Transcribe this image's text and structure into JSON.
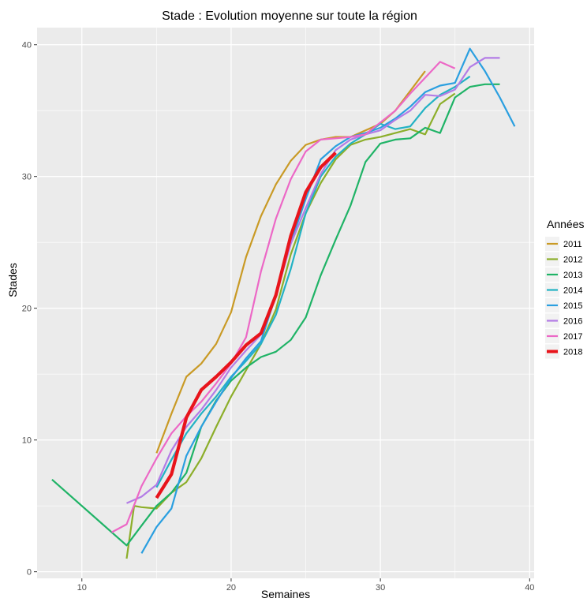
{
  "chart_data": {
    "type": "line",
    "title": "Stade : Evolution moyenne sur toute la région",
    "xlabel": "Semaines",
    "ylabel": "Stades",
    "xlim": [
      7,
      40.3
    ],
    "ylim": [
      -0.5,
      41.3
    ],
    "xticks": [
      10,
      20,
      30,
      40
    ],
    "yticks": [
      0,
      10,
      20,
      30,
      40
    ],
    "grid": true,
    "legend_title": "Années",
    "legend_position": "right",
    "series": [
      {
        "name": "2011",
        "color": "#C99A25",
        "width": 2.2,
        "x": [
          15,
          16,
          17,
          18,
          19,
          20,
          21,
          22,
          23,
          24,
          25,
          26,
          27,
          28,
          29,
          30,
          31,
          32,
          33
        ],
        "y": [
          9,
          12,
          14.8,
          15.8,
          17.3,
          19.7,
          23.9,
          27,
          29.4,
          31.2,
          32.4,
          32.8,
          33,
          33,
          33.5,
          34,
          35,
          36.5,
          38
        ]
      },
      {
        "name": "2012",
        "color": "#8CAE2A",
        "width": 2.2,
        "x": [
          13,
          13.5,
          14,
          15,
          16,
          17,
          18,
          19,
          20,
          21,
          22,
          23,
          24,
          25,
          26,
          27,
          28,
          29,
          30,
          31,
          32,
          33,
          34,
          35
        ],
        "y": [
          1,
          5,
          4.9,
          4.8,
          6,
          6.8,
          8.6,
          11,
          13.3,
          15.3,
          17.3,
          19.9,
          24.1,
          27.2,
          29.5,
          31.3,
          32.4,
          32.8,
          33,
          33.3,
          33.6,
          33.2,
          35.5,
          36.3
        ]
      },
      {
        "name": "2013",
        "color": "#1FB366",
        "width": 2.2,
        "x": [
          8,
          13,
          14,
          15,
          16,
          17,
          18,
          19,
          20,
          21,
          22,
          23,
          24,
          25,
          26,
          27,
          28,
          29,
          30,
          31,
          32,
          33,
          34,
          35,
          36,
          37,
          38
        ],
        "y": [
          7,
          2,
          3.5,
          5,
          6,
          7.5,
          11,
          13,
          14.5,
          15.5,
          16.3,
          16.7,
          17.6,
          19.3,
          22.5,
          25.2,
          27.8,
          31.1,
          32.5,
          32.8,
          32.9,
          33.7,
          33.3,
          36,
          36.8,
          37,
          37
        ]
      },
      {
        "name": "2014",
        "color": "#22B2C4",
        "width": 2.2,
        "x": [
          15,
          16,
          17,
          18,
          19,
          20,
          21,
          22,
          23,
          24,
          25,
          26,
          27,
          28,
          29,
          30,
          31,
          32,
          33,
          34,
          35,
          36
        ],
        "y": [
          6.4,
          8.5,
          10.5,
          12,
          13.3,
          14.8,
          16,
          17.3,
          19.5,
          23,
          27.2,
          30,
          31.5,
          32.5,
          33.2,
          34,
          33.6,
          33.8,
          35.2,
          36.2,
          36.8,
          37.6
        ]
      },
      {
        "name": "2015",
        "color": "#2A9FE0",
        "width": 2.2,
        "x": [
          14,
          15,
          16,
          17,
          18,
          19,
          20,
          21,
          22,
          23,
          24,
          25,
          26,
          27,
          28,
          29,
          30,
          31,
          32,
          33,
          34,
          35,
          36,
          37,
          38,
          39
        ],
        "y": [
          1.4,
          3.4,
          4.8,
          8.8,
          11,
          12.9,
          14.7,
          16.2,
          17.5,
          21,
          25,
          28.3,
          31.3,
          32.3,
          33,
          33.3,
          33.7,
          34.4,
          35.3,
          36.4,
          36.9,
          37.1,
          39.7,
          38,
          36,
          33.8
        ]
      },
      {
        "name": "2016",
        "color": "#B37CE6",
        "width": 2.2,
        "x": [
          13,
          14,
          15,
          16,
          17,
          18,
          19,
          20,
          21,
          22,
          23,
          24,
          25,
          26,
          27,
          28,
          29,
          30,
          31,
          32,
          33,
          34,
          35,
          36,
          37,
          38
        ],
        "y": [
          5.2,
          5.7,
          6.6,
          9.2,
          11,
          12.3,
          13.8,
          15.5,
          16.8,
          18,
          21,
          24.9,
          27.6,
          30.2,
          32,
          32.8,
          33.2,
          33.5,
          34.3,
          35,
          36.2,
          36.1,
          36.6,
          38.3,
          39,
          39
        ]
      },
      {
        "name": "2017",
        "color": "#EC68C6",
        "width": 2.2,
        "x": [
          12,
          13,
          14,
          15,
          16,
          17,
          18,
          19,
          20,
          21,
          22,
          23,
          24,
          25,
          26,
          27,
          28,
          29,
          30,
          31,
          32,
          33,
          34,
          35
        ],
        "y": [
          3,
          3.6,
          6.5,
          8.6,
          10.5,
          11.8,
          12.9,
          14.3,
          15.8,
          17.8,
          22.8,
          26.8,
          29.8,
          31.9,
          32.8,
          32.9,
          33,
          33.2,
          34.1,
          35,
          36.3,
          37.5,
          38.7,
          38.2
        ]
      },
      {
        "name": "2018",
        "color": "#E8141B",
        "width": 4.2,
        "x": [
          15,
          16,
          17,
          18,
          19,
          20,
          21,
          22,
          23,
          24,
          25,
          26,
          27
        ],
        "y": [
          5.6,
          7.4,
          11.7,
          13.8,
          14.8,
          15.9,
          17.2,
          18.1,
          21,
          25.5,
          28.8,
          30.7,
          31.8
        ]
      }
    ]
  }
}
